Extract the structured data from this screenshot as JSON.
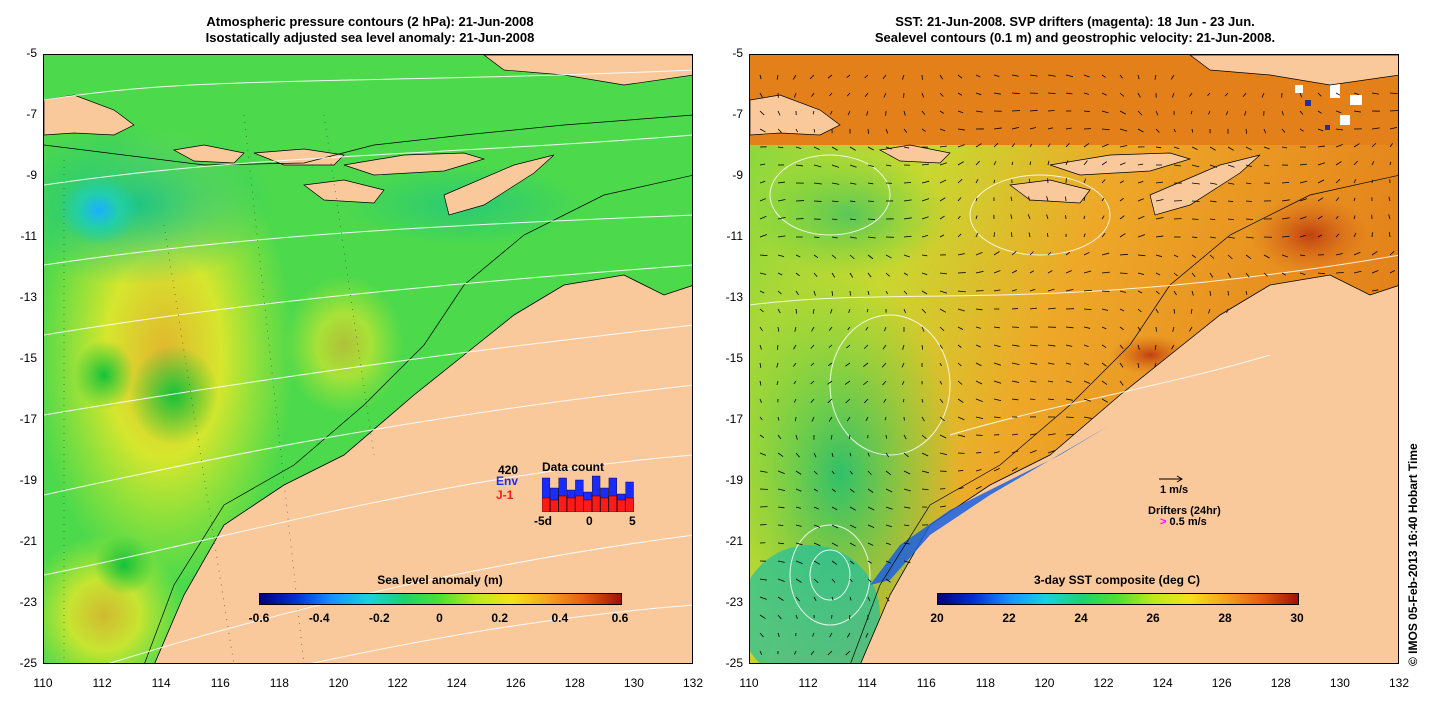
{
  "left_panel": {
    "title_line1": "Atmospheric pressure contours (2 hPa): 21-Jun-2008",
    "title_line2": "Isostatically adjusted sea level anomaly: 21-Jun-2008",
    "y_ticks": [
      "-5",
      "-7",
      "-9",
      "-11",
      "-13",
      "-15",
      "-17",
      "-19",
      "-21",
      "-23",
      "-25"
    ],
    "x_ticks": [
      "110",
      "112",
      "114",
      "116",
      "118",
      "120",
      "122",
      "124",
      "126",
      "128",
      "130",
      "132"
    ],
    "colorbar": {
      "title": "Sea level anomaly (m)",
      "labels": [
        "-0.6",
        "-0.4",
        "-0.2",
        "0",
        "0.2",
        "0.4",
        "0.6"
      ]
    },
    "data_count": {
      "title": "Data count",
      "max_label": "420",
      "env_label": "Env",
      "j1_label": "J-1",
      "x_labels": [
        "-5d",
        "0",
        "5"
      ],
      "env_color": "#1a2bff",
      "j1_color": "#ff1a1a",
      "env_values": [
        0.85,
        0.6,
        0.85,
        0.55,
        0.8,
        0.5,
        0.9,
        0.6,
        0.85,
        0.45,
        0.75
      ],
      "j1_values": [
        0.35,
        0.3,
        0.4,
        0.35,
        0.4,
        0.3,
        0.4,
        0.35,
        0.4,
        0.3,
        0.35
      ]
    }
  },
  "right_panel": {
    "title_line1": "SST: 21-Jun-2008. SVP drifters (magenta): 18 Jun - 23 Jun.",
    "title_line2": "Sealevel contours (0.1 m) and geostrophic velocity: 21-Jun-2008.",
    "y_ticks": [
      "-5",
      "-7",
      "-9",
      "-11",
      "-13",
      "-15",
      "-17",
      "-19",
      "-21",
      "-23",
      "-25"
    ],
    "x_ticks": [
      "110",
      "112",
      "114",
      "116",
      "118",
      "120",
      "122",
      "124",
      "126",
      "128",
      "130",
      "132"
    ],
    "colorbar": {
      "title": "3-day SST composite (deg C)",
      "labels": [
        "20",
        "22",
        "24",
        "26",
        "28",
        "30"
      ]
    },
    "velocity_legend": "1 m/s",
    "drifters_legend": "Drifters (24hr)",
    "drifter_speed": "0.5 m/s",
    "drifter_color": "#ff00ff"
  },
  "credit": "© IMOS 05-Feb-2013 16:40 Hobart Time",
  "colors": {
    "land": "#f9c99c",
    "sla_green": "#4cd94c",
    "sst_orange": "#e88a1e"
  }
}
